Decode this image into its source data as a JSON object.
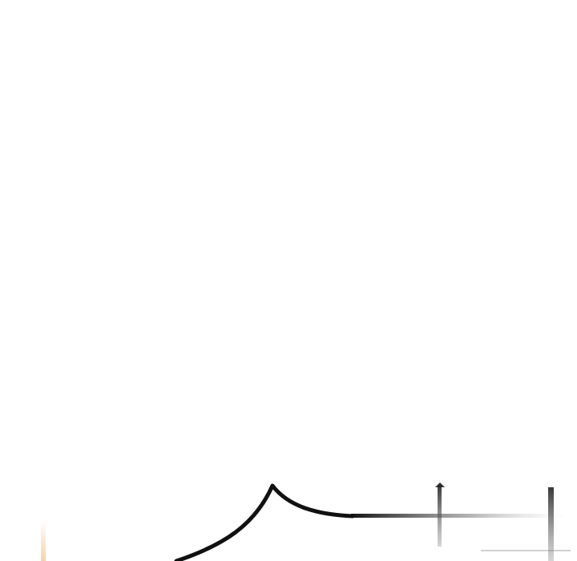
{
  "panel": {
    "background_color": "#ffffff",
    "ink_color": "#111111",
    "accent_glow_color": "#f2c89a",
    "speech_bubble_icon": "speech-bubble-tail-icon",
    "text": ""
  }
}
